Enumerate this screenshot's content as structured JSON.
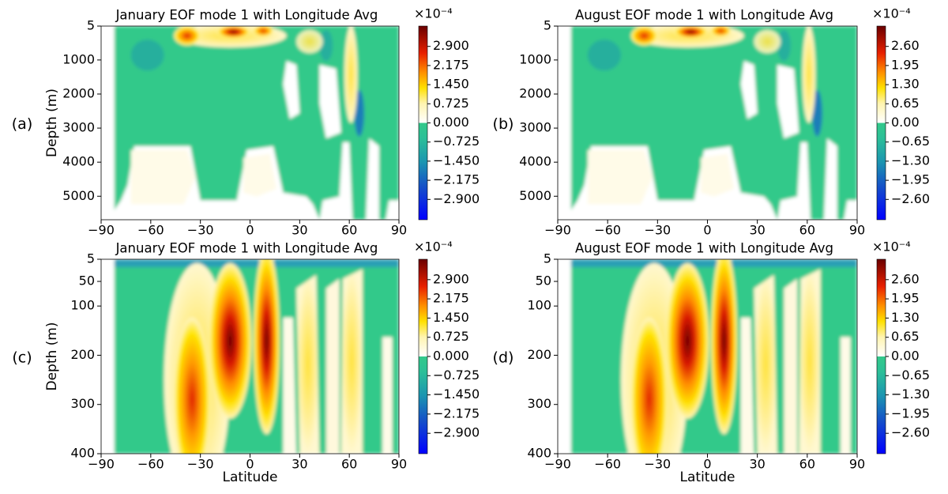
{
  "chart_data": [
    {
      "type": "contour",
      "panel_label": "(a)",
      "title": "January EOF mode 1 with Longitude Avg",
      "ylabel": "Depth (m)",
      "xlim": [
        -90,
        90
      ],
      "xticks": [
        {
          "value": -90,
          "label": "−90"
        },
        {
          "value": -60,
          "label": "−60"
        },
        {
          "value": -30,
          "label": "−30"
        },
        0,
        30,
        60,
        90
      ],
      "ylim": [
        5,
        5690
      ],
      "yticks": [
        5,
        1000,
        2000,
        3000,
        4000,
        5000
      ],
      "colorbar": {
        "multiplier": "×10⁻⁴",
        "clim": [
          -3.67,
          3.67
        ],
        "ticks": [
          {
            "value": 2.9,
            "label": "2.900"
          },
          {
            "value": 2.175,
            "label": "2.175"
          },
          {
            "value": 1.45,
            "label": "1.450"
          },
          {
            "value": 0.725,
            "label": "0.725"
          },
          {
            "value": 0,
            "label": "0.000"
          },
          {
            "value": -0.725,
            "label": "−0.725"
          },
          {
            "value": -1.45,
            "label": "−1.450"
          },
          {
            "value": -2.175,
            "label": "−2.175"
          },
          {
            "value": -2.9,
            "label": "−2.900"
          }
        ]
      }
    },
    {
      "type": "contour",
      "panel_label": "(b)",
      "title": "August EOF mode 1 with Longitude Avg",
      "xlim": [
        -90,
        90
      ],
      "xticks": [
        {
          "value": -90,
          "label": "−90"
        },
        {
          "value": -60,
          "label": "−60"
        },
        {
          "value": -30,
          "label": "−30"
        },
        0,
        30,
        60,
        90
      ],
      "ylim": [
        5,
        5690
      ],
      "yticks": [
        5,
        1000,
        2000,
        3000,
        4000,
        5000
      ],
      "colorbar": {
        "multiplier": "×10⁻⁴",
        "clim": [
          -3.29,
          3.29
        ],
        "ticks": [
          {
            "value": 2.6,
            "label": "2.60"
          },
          {
            "value": 1.95,
            "label": "1.95"
          },
          {
            "value": 1.3,
            "label": "1.30"
          },
          {
            "value": 0.65,
            "label": "0.65"
          },
          {
            "value": 0,
            "label": "0.00"
          },
          {
            "value": -0.65,
            "label": "−0.65"
          },
          {
            "value": -1.3,
            "label": "−1.30"
          },
          {
            "value": -1.95,
            "label": "−1.95"
          },
          {
            "value": -2.6,
            "label": "−2.60"
          }
        ]
      }
    },
    {
      "type": "contour",
      "panel_label": "(c)",
      "title": "January EOF mode 1 with Longitude Avg",
      "ylabel": "Depth (m)",
      "xlabel": "Latitude",
      "xlim": [
        -90,
        90
      ],
      "xticks": [
        {
          "value": -90,
          "label": "−90"
        },
        {
          "value": -60,
          "label": "−60"
        },
        {
          "value": -30,
          "label": "−30"
        },
        0,
        30,
        60,
        90
      ],
      "ylim": [
        5,
        400
      ],
      "yticks": [
        5,
        50,
        100,
        200,
        300,
        400
      ],
      "colorbar": {
        "multiplier": "×10⁻⁴",
        "clim": [
          -3.67,
          3.67
        ],
        "ticks": [
          {
            "value": 2.9,
            "label": "2.900"
          },
          {
            "value": 2.175,
            "label": "2.175"
          },
          {
            "value": 1.45,
            "label": "1.450"
          },
          {
            "value": 0.725,
            "label": "0.725"
          },
          {
            "value": 0,
            "label": "0.000"
          },
          {
            "value": -0.725,
            "label": "−0.725"
          },
          {
            "value": -1.45,
            "label": "−1.450"
          },
          {
            "value": -2.175,
            "label": "−2.175"
          },
          {
            "value": -2.9,
            "label": "−2.900"
          }
        ]
      }
    },
    {
      "type": "contour",
      "panel_label": "(d)",
      "title": "August EOF mode 1 with Longitude Avg",
      "xlabel": "Latitude",
      "xlim": [
        -90,
        90
      ],
      "xticks": [
        {
          "value": -90,
          "label": "−90"
        },
        {
          "value": -60,
          "label": "−60"
        },
        {
          "value": -30,
          "label": "−30"
        },
        0,
        30,
        60,
        90
      ],
      "ylim": [
        5,
        400
      ],
      "yticks": [
        5,
        50,
        100,
        200,
        300,
        400
      ],
      "colorbar": {
        "multiplier": "×10⁻⁴",
        "clim": [
          -3.29,
          3.29
        ],
        "ticks": [
          {
            "value": 2.6,
            "label": "2.60"
          },
          {
            "value": 1.95,
            "label": "1.95"
          },
          {
            "value": 1.3,
            "label": "1.30"
          },
          {
            "value": 0.65,
            "label": "0.65"
          },
          {
            "value": 0,
            "label": "0.00"
          },
          {
            "value": -0.65,
            "label": "−0.65"
          },
          {
            "value": -1.3,
            "label": "−1.30"
          },
          {
            "value": -1.95,
            "label": "−1.95"
          },
          {
            "value": -2.6,
            "label": "−2.60"
          }
        ]
      }
    }
  ]
}
